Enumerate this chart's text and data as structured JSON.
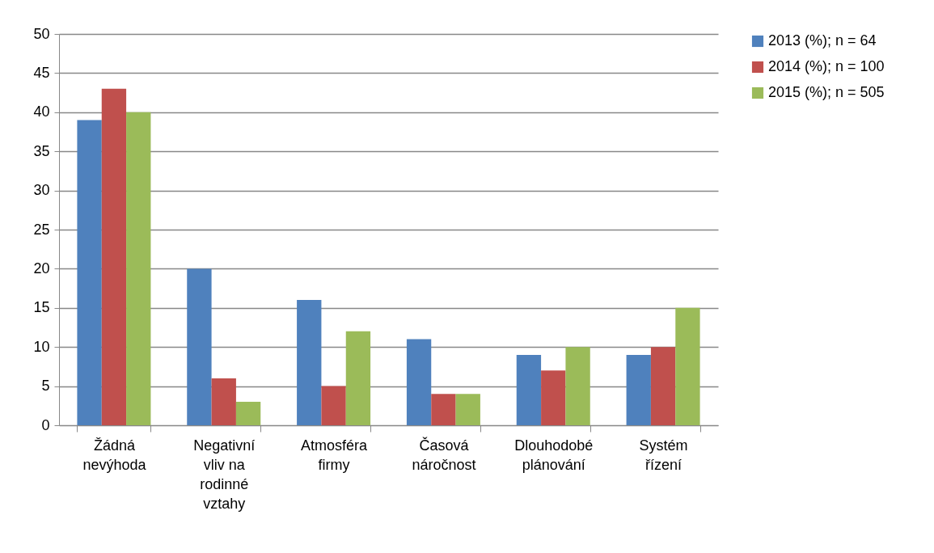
{
  "chart_data": {
    "type": "bar",
    "categories": [
      "Žádná nevýhoda",
      "Negativní vliv na rodinné vztahy",
      "Atmosféra firmy",
      "Časová náročnost",
      "Dlouhodobé plánování",
      "Systém řízení"
    ],
    "series": [
      {
        "name": "2013 (%); n = 64",
        "color": "#4f81bd",
        "values": [
          39,
          20,
          16,
          11,
          9,
          9
        ]
      },
      {
        "name": "2014 (%); n = 100",
        "color": "#c0504d",
        "values": [
          43,
          6,
          5,
          4,
          7,
          10
        ]
      },
      {
        "name": "2015 (%); n = 505",
        "color": "#9bbb59",
        "values": [
          40,
          3,
          12,
          4,
          10,
          15
        ]
      }
    ],
    "ylim": [
      0,
      50
    ],
    "yticks": [
      0,
      5,
      10,
      15,
      20,
      25,
      30,
      35,
      40,
      45,
      50
    ],
    "grid": "y",
    "legend": "right"
  }
}
